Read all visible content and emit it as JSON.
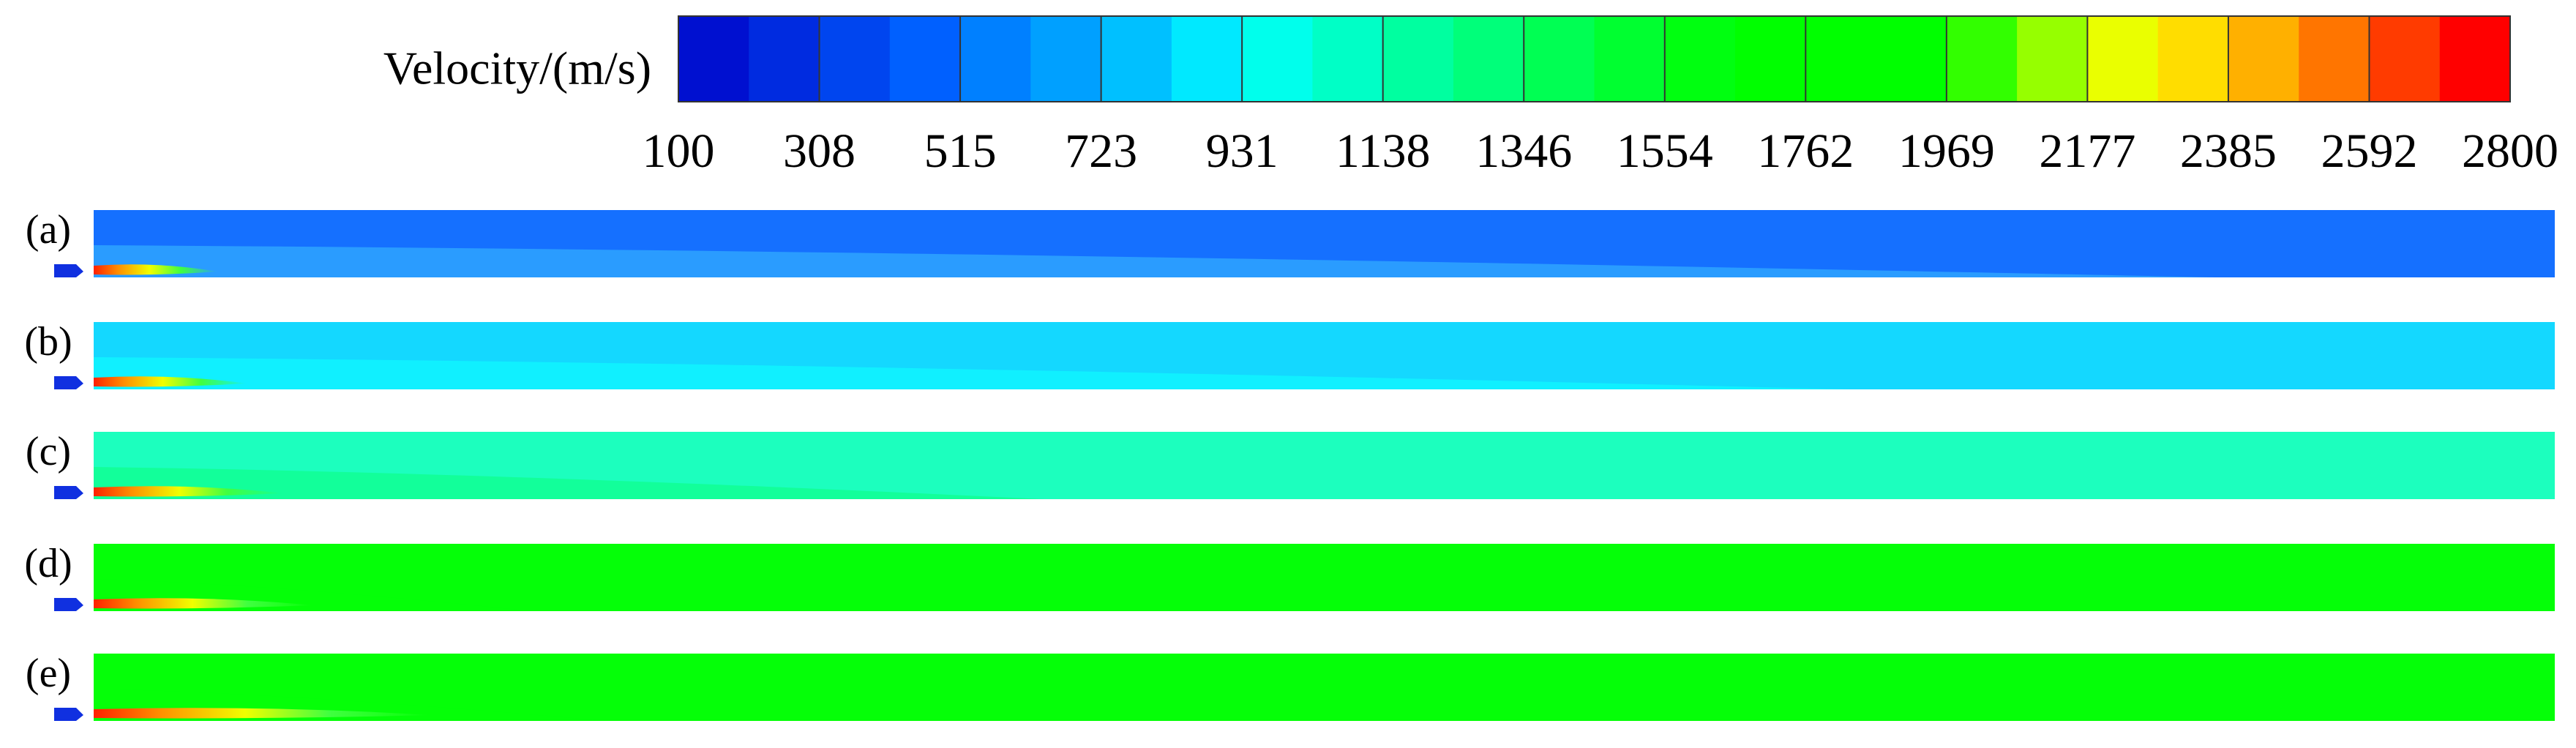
{
  "colorbar": {
    "label": "Velocity/(m/s)",
    "ticks": [
      100,
      308,
      515,
      723,
      931,
      1138,
      1346,
      1554,
      1762,
      1969,
      2177,
      2385,
      2592,
      2800
    ]
  },
  "panels": [
    {
      "label": "(a)"
    },
    {
      "label": "(b)"
    },
    {
      "label": "(c)"
    },
    {
      "label": "(d)"
    },
    {
      "label": "(e)"
    }
  ]
}
